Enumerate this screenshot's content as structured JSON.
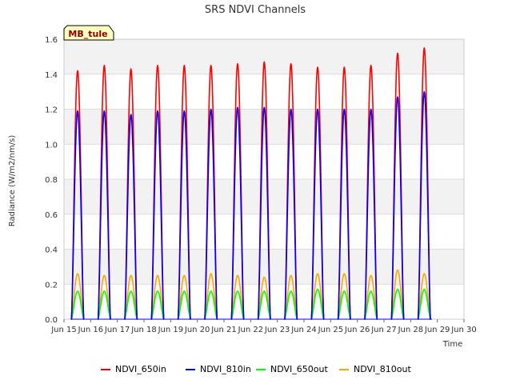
{
  "chart_data": {
    "type": "line",
    "title": "SRS NDVI Channels",
    "xlabel": "Time",
    "ylabel": "Radiance (W/m2/nm/s)",
    "station_label": "MB_tule",
    "xlim": [
      "Jun 15",
      "Jun 30"
    ],
    "ylim": [
      0.0,
      1.6
    ],
    "x_ticks": [
      "Jun 15",
      "Jun 16",
      "Jun 17",
      "Jun 18",
      "Jun 19",
      "Jun 20",
      "Jun 21",
      "Jun 22",
      "Jun 23",
      "Jun 24",
      "Jun 25",
      "Jun 26",
      "Jun 27",
      "Jun 28",
      "Jun 29",
      "Jun 30"
    ],
    "y_ticks": [
      "0.0",
      "0.2",
      "0.4",
      "0.6",
      "0.8",
      "1.0",
      "1.2",
      "1.4",
      "1.6"
    ],
    "grid": true,
    "legend_position": "bottom",
    "days": [
      "Jun 15",
      "Jun 16",
      "Jun 17",
      "Jun 18",
      "Jun 19",
      "Jun 20",
      "Jun 21",
      "Jun 22",
      "Jun 23",
      "Jun 24",
      "Jun 25",
      "Jun 26",
      "Jun 27",
      "Jun 28"
    ],
    "series": [
      {
        "name": "NDVI_650in",
        "color": "#ff0000",
        "daily_peak": [
          1.42,
          1.45,
          1.43,
          1.45,
          1.45,
          1.45,
          1.46,
          1.47,
          1.46,
          1.44,
          1.44,
          1.45,
          1.52,
          1.55
        ]
      },
      {
        "name": "NDVI_810in",
        "color": "#0000ff",
        "daily_peak": [
          1.19,
          1.19,
          1.17,
          1.19,
          1.19,
          1.2,
          1.21,
          1.21,
          1.2,
          1.2,
          1.2,
          1.2,
          1.27,
          1.3
        ]
      },
      {
        "name": "NDVI_650out",
        "color": "#00ff00",
        "daily_peak": [
          0.16,
          0.16,
          0.16,
          0.16,
          0.16,
          0.16,
          0.16,
          0.16,
          0.16,
          0.17,
          0.16,
          0.16,
          0.17,
          0.17
        ]
      },
      {
        "name": "NDVI_810out",
        "color": "#ffa500",
        "daily_peak": [
          0.26,
          0.25,
          0.25,
          0.25,
          0.25,
          0.26,
          0.25,
          0.24,
          0.25,
          0.26,
          0.26,
          0.25,
          0.28,
          0.26
        ]
      }
    ]
  }
}
